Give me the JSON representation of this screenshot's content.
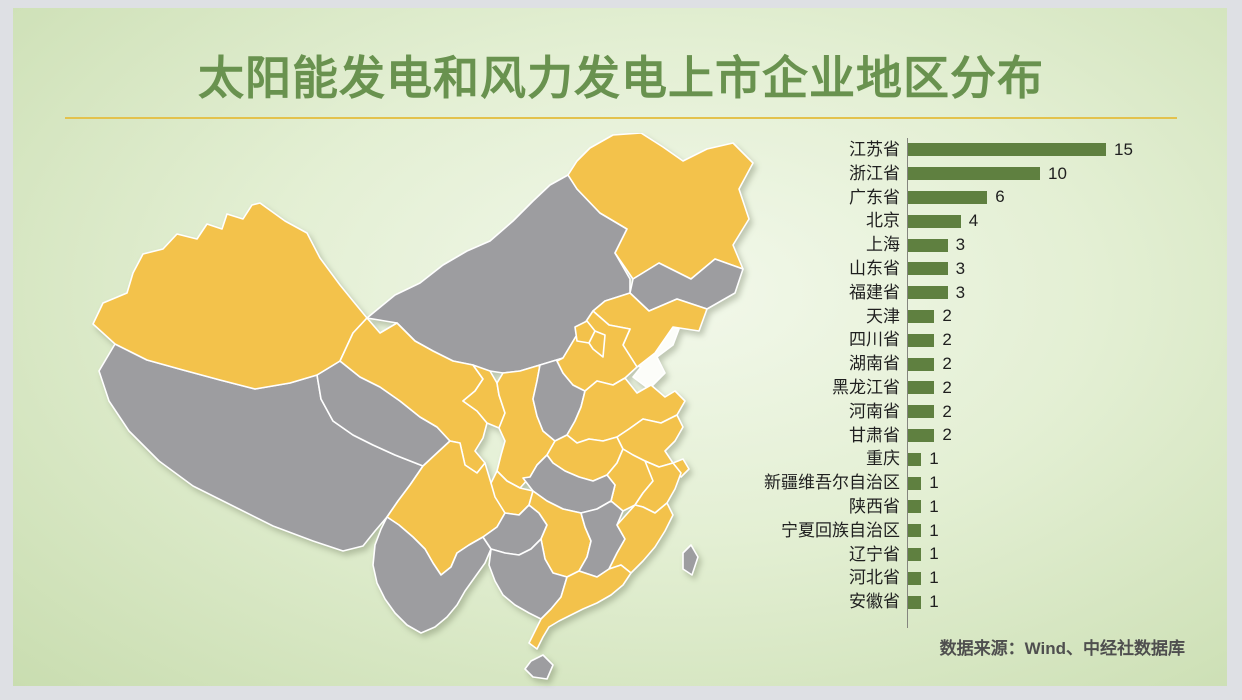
{
  "title": "太阳能发电和风力发电上市企业地区分布",
  "source_note": "数据来源：Wind、中经社数据库",
  "colors": {
    "frame_gray": "#dee0e4",
    "background_center": "#f2f8ea",
    "background_edge": "#c9ddb0",
    "title_green": "#69924f",
    "divider_gold": "#e3c24d",
    "bar_green": "#5f8040",
    "axis_line": "#85857f",
    "label_text": "#1f1f1f",
    "source_text": "#4f4f4f",
    "map_highlight": "#f3c24b",
    "map_default": "#9d9da0",
    "map_border": "#ffffff",
    "sea_white": "#fcfdf9"
  },
  "chart_data": {
    "type": "bar",
    "orientation": "horizontal",
    "title": "太阳能发电和风力发电上市企业地区分布",
    "categories": [
      "江苏省",
      "浙江省",
      "广东省",
      "北京",
      "上海",
      "山东省",
      "福建省",
      "天津",
      "四川省",
      "湖南省",
      "黑龙江省",
      "河南省",
      "甘肃省",
      "重庆",
      "新疆维吾尔自治区",
      "陕西省",
      "宁夏回族自治区",
      "辽宁省",
      "河北省",
      "安徽省"
    ],
    "values": [
      15,
      10,
      6,
      4,
      3,
      3,
      3,
      2,
      2,
      2,
      2,
      2,
      2,
      1,
      1,
      1,
      1,
      1,
      1,
      1
    ],
    "value_labels_shown": true,
    "xlim": [
      0,
      15
    ],
    "grid": false,
    "legend": false
  },
  "map": {
    "description": "china-province-choropleth",
    "highlighted_provinces": [
      "jiangsu",
      "zhejiang",
      "guangdong",
      "beijing",
      "shanghai",
      "shandong",
      "fujian",
      "tianjin",
      "sichuan",
      "hunan",
      "heilongjiang",
      "henan",
      "gansu",
      "chongqing",
      "xinjiang",
      "shaanxi",
      "ningxia",
      "liaoning",
      "hebei",
      "anhui"
    ],
    "default_provinces": [
      "neimenggu",
      "xizang",
      "qinghai",
      "jilin",
      "shanxi",
      "hubei",
      "jiangxi",
      "guizhou",
      "yunnan",
      "guangxi",
      "hainan",
      "taiwan"
    ]
  }
}
